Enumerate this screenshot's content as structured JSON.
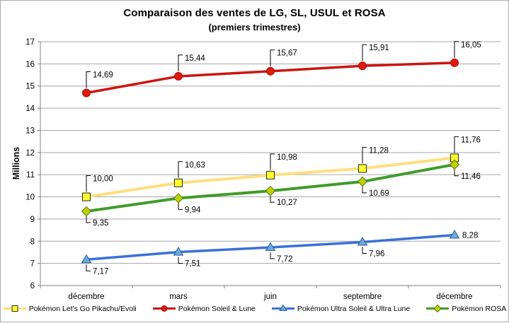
{
  "chart_data": {
    "type": "line",
    "title": "Comparaison des ventes de LG, SL, USUL et ROSA",
    "subtitle": "(premiers trimestres)",
    "ylabel": "Millions",
    "xlabel": "",
    "ylim": [
      6,
      17
    ],
    "y_tick_step": 1,
    "grid": "horizontal-only",
    "legend_position": "bottom",
    "number_format": "french-comma-decimal",
    "categories": [
      "décembre",
      "mars",
      "juin",
      "septembre",
      "décembre"
    ],
    "axis_color": "#808080",
    "gridline_color": "#a6a6a6",
    "leader_line_color": "#000000",
    "series": [
      {
        "name": "Pokémon Let's Go Pikachu/Evoli",
        "color": "#ffde7d",
        "line_width": 4,
        "marker": "square",
        "marker_fill": "#ffff2e",
        "marker_stroke": "#262626",
        "values": [
          10.0,
          10.63,
          10.98,
          11.28,
          11.76
        ],
        "labels": [
          "10,00",
          "10,63",
          "10,98",
          "11,28",
          "11,76"
        ],
        "label_pos": [
          "above",
          "above",
          "above",
          "above",
          "above"
        ]
      },
      {
        "name": "Pokémon Soleil & Lune",
        "color": "#cb1511",
        "line_width": 3.5,
        "marker": "circle",
        "marker_fill": "#e01a0e",
        "marker_stroke": "#a31009",
        "values": [
          14.69,
          15.44,
          15.67,
          15.91,
          16.05
        ],
        "labels": [
          "14,69",
          "15,44",
          "15,67",
          "15,91",
          "16,05"
        ],
        "label_pos": [
          "above",
          "above",
          "above",
          "above",
          "above"
        ]
      },
      {
        "name": "Pokémon Ultra Soleil & Ultra Lune",
        "color": "#3a70d9",
        "line_width": 3.5,
        "marker": "triangle",
        "marker_fill": "#6fa8dc",
        "marker_stroke": "#2a5e9c",
        "values": [
          7.17,
          7.51,
          7.72,
          7.96,
          8.28
        ],
        "labels": [
          "7,17",
          "7,51",
          "7,72",
          "7,96",
          "8,28"
        ],
        "label_pos": [
          "below",
          "below",
          "below",
          "below",
          "right"
        ]
      },
      {
        "name": "Pokémon ROSA",
        "color": "#3f9b28",
        "line_width": 4,
        "marker": "diamond",
        "marker_fill": "#c2cf00",
        "marker_stroke": "#4c7a16",
        "values": [
          9.35,
          9.94,
          10.27,
          10.69,
          11.46
        ],
        "labels": [
          "9,35",
          "9,94",
          "10,27",
          "10,69",
          "11,46"
        ],
        "label_pos": [
          "below",
          "below",
          "below",
          "below",
          "below"
        ]
      }
    ]
  }
}
